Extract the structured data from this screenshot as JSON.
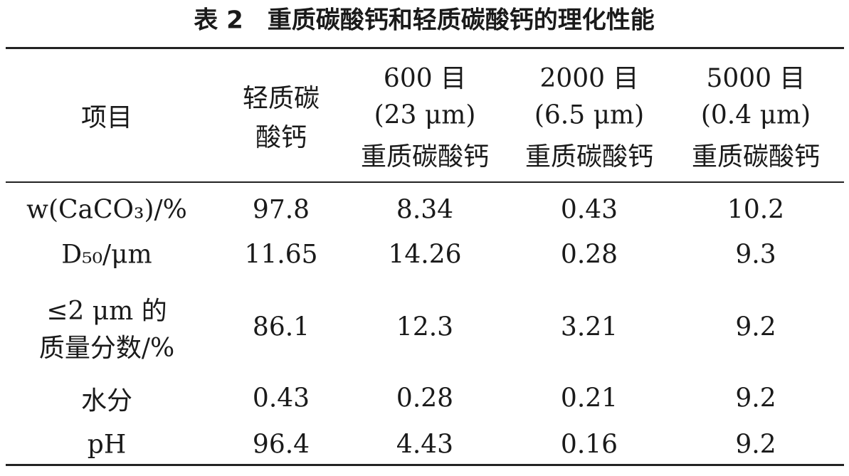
{
  "title": "表 2　重质碳酸钙和轻质碳酸钙的理化性能",
  "table": {
    "header": [
      [
        "项目"
      ],
      [
        "轻质碳",
        "酸钙"
      ],
      [
        "600 目",
        "(23 μm)",
        "重质碳酸钙"
      ],
      [
        "2000 目",
        "(6.5 μm)",
        "重质碳酸钙"
      ],
      [
        "5000 目",
        "(0.4 μm)",
        "重质碳酸钙"
      ]
    ],
    "rows": [
      [
        [
          "w(CaCO₃)/%"
        ],
        "97.8",
        "8.34",
        "0.43",
        "10.2"
      ],
      [
        [
          "D₅₀/μm"
        ],
        "11.65",
        "14.26",
        "0.28",
        "9.3"
      ],
      [
        [
          "≤2 μm 的",
          "质量分数/%"
        ],
        "86.1",
        "12.3",
        "3.21",
        "9.2"
      ],
      [
        [
          "水分"
        ],
        "0.43",
        "0.28",
        "0.21",
        "9.2"
      ],
      [
        [
          "pH"
        ],
        "96.4",
        "4.43",
        "0.16",
        "9.2"
      ]
    ]
  }
}
